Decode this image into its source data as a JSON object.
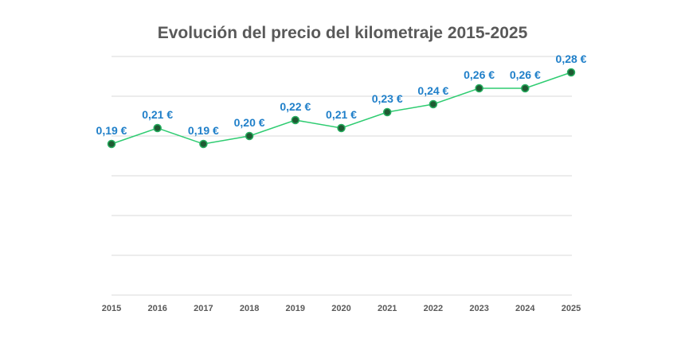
{
  "chart_data": {
    "type": "line",
    "title": "Evolución del precio del kilometraje 2015-2025",
    "xlabel": "",
    "ylabel": "",
    "categories": [
      "2015",
      "2016",
      "2017",
      "2018",
      "2019",
      "2020",
      "2021",
      "2022",
      "2023",
      "2024",
      "2025"
    ],
    "series": [
      {
        "values": [
          0.19,
          0.21,
          0.19,
          0.2,
          0.22,
          0.21,
          0.23,
          0.24,
          0.26,
          0.26,
          0.28
        ],
        "data_labels": [
          "0,19 €",
          "0,21 €",
          "0,19 €",
          "0,20 €",
          "0,22 €",
          "0,21 €",
          "0,23 €",
          "0,24 €",
          "0,26 €",
          "0,26 €",
          "0,28 €"
        ]
      }
    ],
    "ylim": [
      0,
      0.3
    ],
    "y_axis_visible": false,
    "grid": true,
    "legend": "none",
    "colors": {
      "line": "#2ecc71",
      "marker_fill": "#1e5a32",
      "marker_stroke": "#27ae60",
      "data_label": "#1f7fc9",
      "grid": "#d9d9d9",
      "title": "#595959"
    }
  }
}
